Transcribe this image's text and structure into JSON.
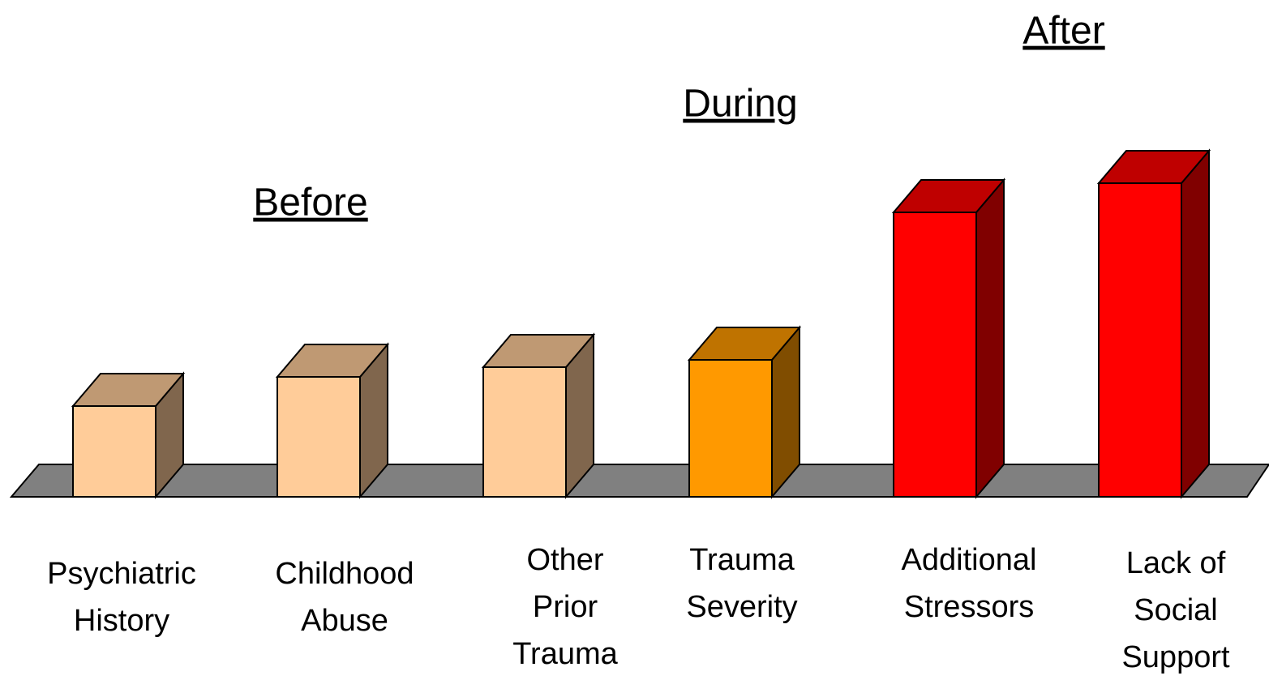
{
  "chart_data": {
    "type": "bar3d",
    "categories": [
      "Psychiatric\nHistory",
      "Childhood\nAbuse",
      "Other\nPrior\nTrauma",
      "Trauma\nSeverity",
      "Additional\nStressors",
      "Lack of\nSocial\nSupport"
    ],
    "values": [
      112,
      148,
      160,
      169,
      351,
      387
    ],
    "colors": [
      "#ffcc99",
      "#ffcc99",
      "#ffcc99",
      "#ff9900",
      "#ff0000",
      "#ff0000"
    ],
    "floor_color": "#808080",
    "annotations": [
      "Before",
      "During",
      "After"
    ]
  }
}
